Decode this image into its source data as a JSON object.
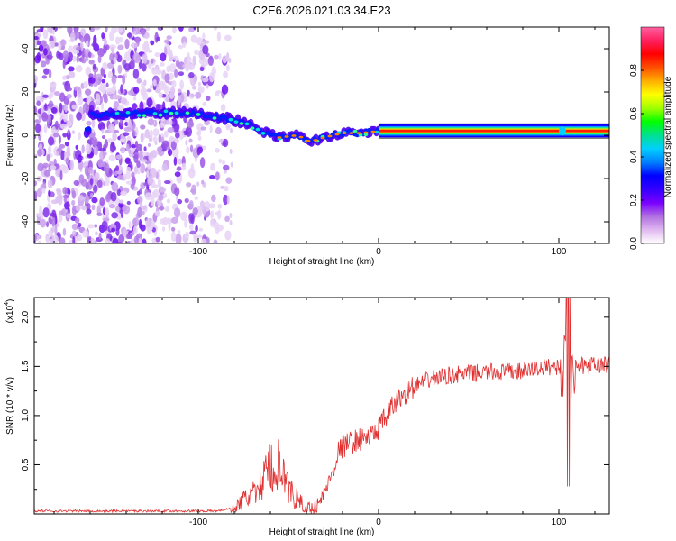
{
  "title": "C2E6.2026.021.03.34.E23",
  "chart_data": [
    {
      "type": "heatmap",
      "xlabel": "Height of straight line (km)",
      "ylabel": "Frequency (Hz)",
      "xlim": [
        -191,
        128
      ],
      "ylim": [
        -50,
        50
      ],
      "xticks": [
        -100,
        0,
        100
      ],
      "yticks": [
        -40,
        -20,
        0,
        20,
        40
      ],
      "grid": false,
      "colorbar": {
        "label": "Normalized spectral amplitude",
        "range": [
          0,
          1
        ],
        "ticks": [
          "0.0",
          "0.2",
          "0.4",
          "0.6",
          "0.8"
        ],
        "colors": [
          "#ffffff",
          "#e0b8f0",
          "#b070e0",
          "#7a00ff",
          "#3300ff",
          "#0000ff",
          "#0080ff",
          "#00d0ff",
          "#00e090",
          "#00ff00",
          "#a0ff00",
          "#ffff00",
          "#ffb000",
          "#ff5000",
          "#ff0000",
          "#ff2060",
          "#ff60a0"
        ]
      },
      "ridge": {
        "description_points": [
          {
            "x": -160,
            "f": 9.5
          },
          {
            "x": -130,
            "f": 10
          },
          {
            "x": -110,
            "f": 10.5
          },
          {
            "x": -95,
            "f": 9.5
          },
          {
            "x": -85,
            "f": 8
          },
          {
            "x": -75,
            "f": 6
          },
          {
            "x": -65,
            "f": 2
          },
          {
            "x": -55,
            "f": -1
          },
          {
            "x": -45,
            "f": 0
          },
          {
            "x": -38,
            "f": -3
          },
          {
            "x": -30,
            "f": -1
          },
          {
            "x": -20,
            "f": 1
          },
          {
            "x": -10,
            "f": 1
          },
          {
            "x": 0,
            "f": 2
          },
          {
            "x": 128,
            "f": 2
          }
        ],
        "steady_from": 0,
        "steady_freq": 2
      }
    },
    {
      "type": "line",
      "xlabel": "Height of straight line (km)",
      "ylabel": "SNR (10 * v/v)",
      "y_multiplier": "(x10",
      "y_multiplier_exp": "4",
      "y_multiplier_close": ")",
      "xlim": [
        -191,
        128
      ],
      "ylim": [
        0,
        2.2
      ],
      "xticks": [
        -100,
        0,
        100
      ],
      "yticks": [
        "0.5",
        "1.0",
        "1.5",
        "2.0"
      ],
      "grid": false,
      "color": "#e03030",
      "envelope": [
        {
          "x": -191,
          "y": 0.03
        },
        {
          "x": -110,
          "y": 0.03
        },
        {
          "x": -90,
          "y": 0.03
        },
        {
          "x": -80,
          "y": 0.06
        },
        {
          "x": -72,
          "y": 0.18
        },
        {
          "x": -65,
          "y": 0.35
        },
        {
          "x": -60,
          "y": 0.55
        },
        {
          "x": -57,
          "y": 0.6
        },
        {
          "x": -53,
          "y": 0.45
        },
        {
          "x": -48,
          "y": 0.2
        },
        {
          "x": -40,
          "y": 0.05
        },
        {
          "x": -33,
          "y": 0.1
        },
        {
          "x": -27,
          "y": 0.35
        },
        {
          "x": -22,
          "y": 0.65
        },
        {
          "x": -17,
          "y": 0.72
        },
        {
          "x": -10,
          "y": 0.76
        },
        {
          "x": -3,
          "y": 0.8
        },
        {
          "x": 3,
          "y": 0.95
        },
        {
          "x": 10,
          "y": 1.15
        },
        {
          "x": 20,
          "y": 1.3
        },
        {
          "x": 30,
          "y": 1.38
        },
        {
          "x": 45,
          "y": 1.42
        },
        {
          "x": 60,
          "y": 1.44
        },
        {
          "x": 80,
          "y": 1.45
        },
        {
          "x": 95,
          "y": 1.5
        },
        {
          "x": 110,
          "y": 1.5
        },
        {
          "x": 128,
          "y": 1.52
        }
      ],
      "spike": {
        "x": 105,
        "max": 2.2,
        "min": 0.28
      }
    }
  ]
}
